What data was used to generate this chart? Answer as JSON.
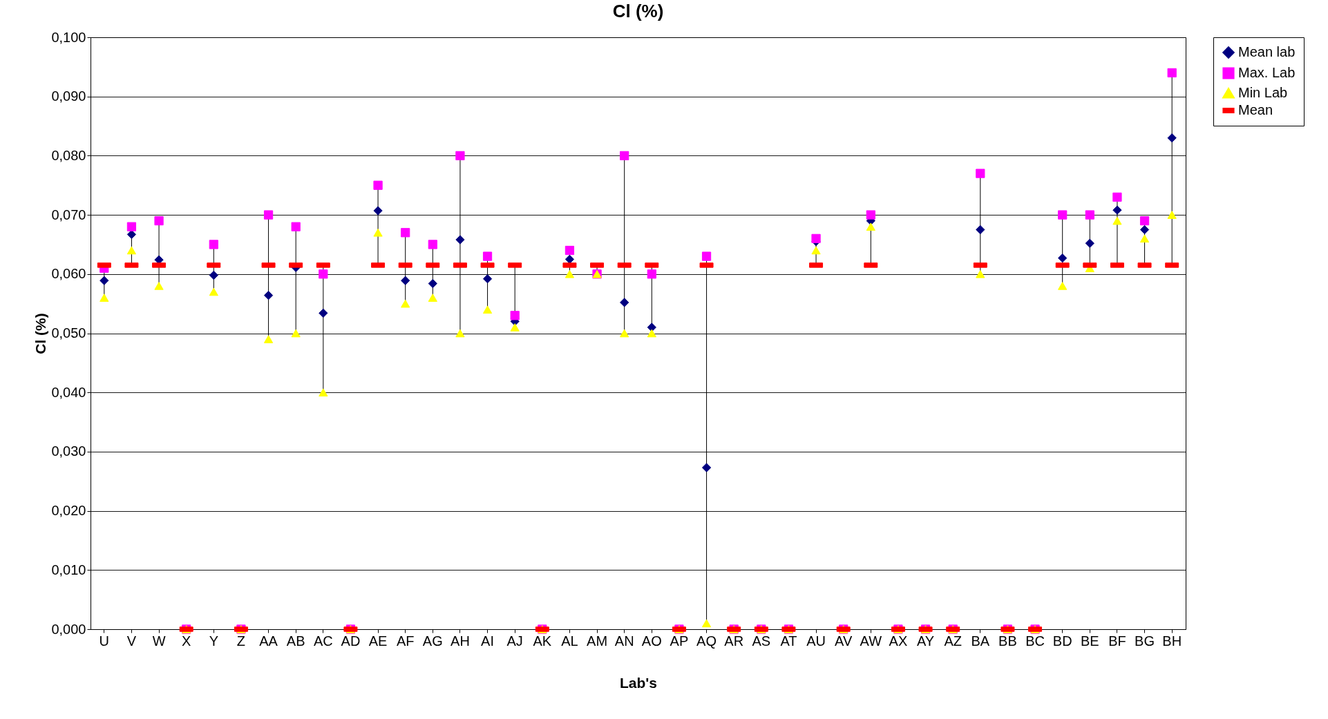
{
  "chart_data": {
    "type": "scatter",
    "title": "Cl (%)",
    "xlabel": "Lab's",
    "ylabel": "Cl (%)",
    "categories": [
      "U",
      "V",
      "W",
      "X",
      "Y",
      "Z",
      "AA",
      "AB",
      "AC",
      "AD",
      "AE",
      "AF",
      "AG",
      "AH",
      "AI",
      "AJ",
      "AK",
      "AL",
      "AM",
      "AN",
      "AO",
      "AP",
      "AQ",
      "AR",
      "AS",
      "AT",
      "AU",
      "AV",
      "AW",
      "AX",
      "AY",
      "AZ",
      "BA",
      "BB",
      "BC",
      "BD",
      "BE",
      "BF",
      "BG",
      "BH"
    ],
    "series": [
      {
        "name": "Mean lab",
        "color": "#000080",
        "marker": "diamond",
        "values": [
          0.0589,
          0.0667,
          0.0624,
          null,
          0.0598,
          null,
          0.0564,
          0.0611,
          0.0534,
          null,
          0.0707,
          0.0589,
          0.0584,
          0.0658,
          0.0592,
          0.052,
          null,
          0.0625,
          null,
          0.0552,
          0.051,
          null,
          0.0273,
          null,
          null,
          null,
          0.0655,
          null,
          0.069,
          null,
          null,
          null,
          0.0675,
          null,
          null,
          0.0627,
          0.0652,
          0.0708,
          0.0675,
          0.083
        ]
      },
      {
        "name": "Max. Lab",
        "color": "#ff00ff",
        "marker": "square",
        "values": [
          0.061,
          0.068,
          0.069,
          0,
          0.065,
          0,
          0.07,
          0.068,
          0.06,
          0,
          0.075,
          0.067,
          0.065,
          0.08,
          0.063,
          0.053,
          0,
          0.064,
          0.06,
          0.08,
          0.06,
          0,
          0.063,
          0,
          0,
          0,
          0.066,
          0,
          0.07,
          0,
          0,
          0,
          0.077,
          0,
          0,
          0.07,
          0.07,
          0.073,
          0.069,
          0.094
        ]
      },
      {
        "name": "Min Lab",
        "color": "#ffff00",
        "marker": "triangle",
        "values": [
          0.056,
          0.064,
          0.058,
          0,
          0.057,
          0,
          0.049,
          0.05,
          0.04,
          0,
          0.067,
          0.055,
          0.056,
          0.05,
          0.054,
          0.051,
          0,
          0.06,
          0.06,
          0.05,
          0.05,
          0,
          0.001,
          0,
          0,
          0,
          0.064,
          0,
          0.068,
          0,
          0,
          0,
          0.06,
          0,
          0,
          0.058,
          0.061,
          0.069,
          0.066,
          0.07
        ]
      },
      {
        "name": "Mean",
        "color": "#ff0000",
        "values": [
          0.0615,
          0.0615,
          0.0615,
          0,
          0.0615,
          0,
          0.0615,
          0.0615,
          0.0615,
          0,
          0.0615,
          0.0615,
          0.0615,
          0.0615,
          0.0615,
          0.0615,
          0,
          0.0615,
          0.0615,
          0.0615,
          0.0615,
          0,
          0.0615,
          0,
          0,
          0,
          0.0615,
          0,
          0.0615,
          0,
          0,
          0,
          0.0615,
          0,
          0,
          0.0615,
          0.0615,
          0.0615,
          0.0615,
          0.0615
        ]
      }
    ],
    "ylim": [
      0,
      0.1
    ],
    "yticks": [
      {
        "value": 0,
        "label": "0,000"
      },
      {
        "value": 0.01,
        "label": "0,010"
      },
      {
        "value": 0.02,
        "label": "0,020"
      },
      {
        "value": 0.03,
        "label": "0,030"
      },
      {
        "value": 0.04,
        "label": "0,040"
      },
      {
        "value": 0.05,
        "label": "0,050"
      },
      {
        "value": 0.06,
        "label": "0,060"
      },
      {
        "value": 0.07,
        "label": "0,070"
      },
      {
        "value": 0.08,
        "label": "0,080"
      },
      {
        "value": 0.09,
        "label": "0,090"
      },
      {
        "value": 0.1,
        "label": "0,100"
      }
    ],
    "grid": "y",
    "legend": "right"
  }
}
